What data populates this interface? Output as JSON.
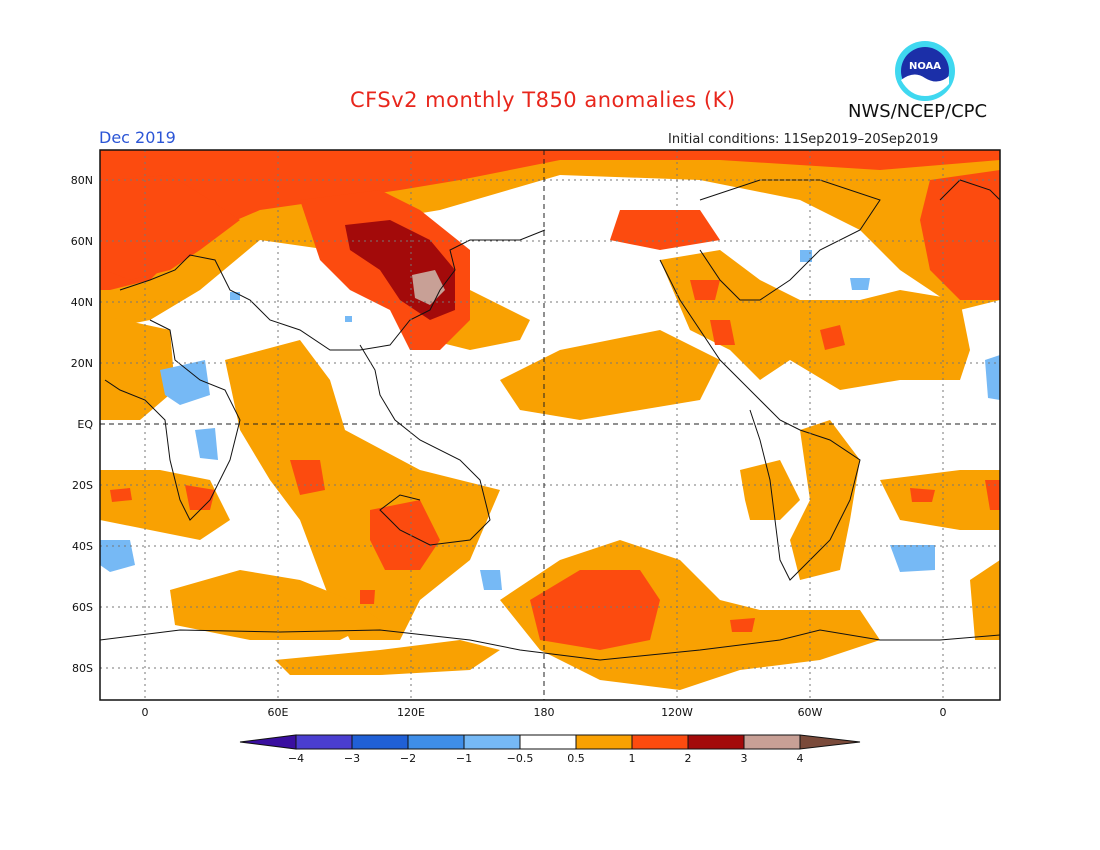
{
  "header": {
    "title": "CFSv2 monthly T850 anomalies (K)",
    "month": "Dec 2019",
    "initial_conditions": "Initial conditions: 11Sep2019–20Sep2019",
    "agency": "NWS/NCEP/CPC",
    "logo_text": "NOAA"
  },
  "map": {
    "lat_labels": [
      "80N",
      "60N",
      "40N",
      "20N",
      "EQ",
      "20S",
      "40S",
      "60S",
      "80S"
    ],
    "lon_labels": [
      "0",
      "60E",
      "120E",
      "180",
      "120W",
      "60W",
      "0"
    ],
    "colors": {
      "ocean_land_base": "#ffffff",
      "anom_0_5_1": "#f9a102",
      "anom_1_2": "#fc4b0f",
      "anom_2_3": "#a30a0a",
      "anom_3_4": "#c8a096",
      "anom_neg_0_5_1": "#76b9f5",
      "coast": "#111111"
    }
  },
  "legend": {
    "colors": [
      "#3a0fa0",
      "#4a3ed0",
      "#2060d6",
      "#3f8ee8",
      "#76b9f5",
      "#ffffff",
      "#f9a102",
      "#fc4b0f",
      "#a30a0a",
      "#c8a096",
      "#7a4a3a"
    ],
    "labels": [
      "−4",
      "−3",
      "−2",
      "−1",
      "−0.5",
      "0.5",
      "1",
      "2",
      "3",
      "4"
    ]
  }
}
